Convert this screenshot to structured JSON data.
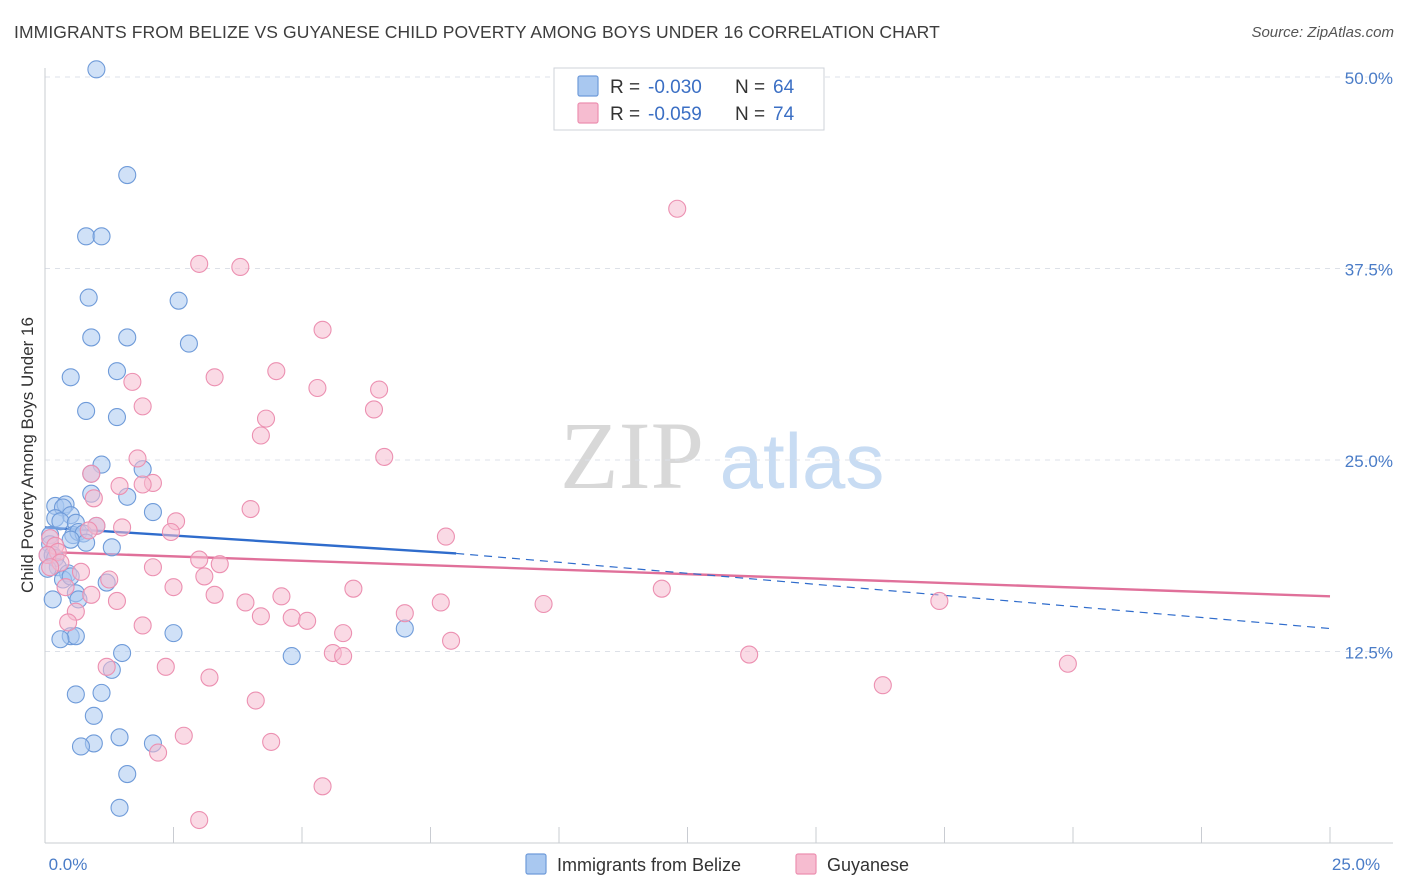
{
  "title": "IMMIGRANTS FROM BELIZE VS GUYANESE CHILD POVERTY AMONG BOYS UNDER 16 CORRELATION CHART",
  "source": "Source: ZipAtlas.com",
  "watermark": {
    "zip": "ZIP",
    "atlas": "atlas"
  },
  "colors": {
    "blue_fill": "#a9c8f0",
    "blue_stroke": "#6f9bd9",
    "blue_line": "#2f6ccc",
    "pink_fill": "#f6bcd0",
    "pink_stroke": "#ec90b1",
    "pink_line": "#e0709a",
    "grid": "#dde1e8",
    "axis_label": "#4a7cc7"
  },
  "legend": {
    "rows": [
      {
        "r_label": "R =",
        "r_value": "-0.030",
        "n_label": "N =",
        "n_value": "64"
      },
      {
        "r_label": "R =",
        "r_value": "-0.059",
        "n_label": "N =",
        "n_value": "74"
      }
    ]
  },
  "chart_data": {
    "type": "scatter",
    "title": "IMMIGRANTS FROM BELIZE VS GUYANESE CHILD POVERTY AMONG BOYS UNDER 16 CORRELATION CHART",
    "xlabel": "",
    "ylabel": "Child Poverty Among Boys Under 16",
    "xlim": [
      0,
      25
    ],
    "ylim": [
      0,
      50
    ],
    "x_tick_labels": [
      "0.0%",
      "25.0%"
    ],
    "y_ticks": [
      12.5,
      25.0,
      37.5,
      50.0
    ],
    "y_tick_labels": [
      "12.5%",
      "25.0%",
      "37.5%",
      "50.0%"
    ],
    "series": [
      {
        "name": "Immigrants from Belize",
        "color": "blue",
        "r": -0.03,
        "n": 64,
        "trend_solid": [
          [
            0.0,
            20.6
          ],
          [
            8.0,
            18.9
          ]
        ],
        "trend_dashed": [
          [
            8.0,
            18.9
          ],
          [
            25.0,
            14.0
          ]
        ],
        "points": [
          [
            1.0,
            50.5
          ],
          [
            1.6,
            43.6
          ],
          [
            0.8,
            39.6
          ],
          [
            1.1,
            39.6
          ],
          [
            0.85,
            35.6
          ],
          [
            2.6,
            35.4
          ],
          [
            0.9,
            33.0
          ],
          [
            1.6,
            33.0
          ],
          [
            2.8,
            32.6
          ],
          [
            0.5,
            30.4
          ],
          [
            1.4,
            30.8
          ],
          [
            0.8,
            28.2
          ],
          [
            1.4,
            27.8
          ],
          [
            1.1,
            24.7
          ],
          [
            1.9,
            24.4
          ],
          [
            0.9,
            24.1
          ],
          [
            0.9,
            22.8
          ],
          [
            1.6,
            22.6
          ],
          [
            0.2,
            22.0
          ],
          [
            0.4,
            22.1
          ],
          [
            0.35,
            21.9
          ],
          [
            0.5,
            21.4
          ],
          [
            2.1,
            21.6
          ],
          [
            0.2,
            21.2
          ],
          [
            0.3,
            21.0
          ],
          [
            0.6,
            20.9
          ],
          [
            1.0,
            20.7
          ],
          [
            0.1,
            20.1
          ],
          [
            0.55,
            20.1
          ],
          [
            0.65,
            20.3
          ],
          [
            0.75,
            20.2
          ],
          [
            0.8,
            19.6
          ],
          [
            0.1,
            19.5
          ],
          [
            0.5,
            19.8
          ],
          [
            1.3,
            19.3
          ],
          [
            0.05,
            18.8
          ],
          [
            0.15,
            18.8
          ],
          [
            0.2,
            18.6
          ],
          [
            0.25,
            18.0
          ],
          [
            0.05,
            17.9
          ],
          [
            0.45,
            17.6
          ],
          [
            0.35,
            17.2
          ],
          [
            0.5,
            17.4
          ],
          [
            1.2,
            17.0
          ],
          [
            0.6,
            16.3
          ],
          [
            0.65,
            15.9
          ],
          [
            0.15,
            15.9
          ],
          [
            7.0,
            14.0
          ],
          [
            0.5,
            13.5
          ],
          [
            0.6,
            13.5
          ],
          [
            0.3,
            13.3
          ],
          [
            2.5,
            13.7
          ],
          [
            1.5,
            12.4
          ],
          [
            4.8,
            12.2
          ],
          [
            1.3,
            11.3
          ],
          [
            0.6,
            9.7
          ],
          [
            1.1,
            9.8
          ],
          [
            0.95,
            8.3
          ],
          [
            1.45,
            6.9
          ],
          [
            0.95,
            6.5
          ],
          [
            0.7,
            6.3
          ],
          [
            2.1,
            6.5
          ],
          [
            1.6,
            4.5
          ],
          [
            1.45,
            2.3
          ]
        ]
      },
      {
        "name": "Guyanese",
        "color": "pink",
        "r": -0.059,
        "n": 74,
        "trend_solid": [
          [
            0.0,
            19.0
          ],
          [
            25.0,
            16.1
          ]
        ],
        "points": [
          [
            12.3,
            41.4
          ],
          [
            3.0,
            37.8
          ],
          [
            3.8,
            37.6
          ],
          [
            5.4,
            33.5
          ],
          [
            4.5,
            30.8
          ],
          [
            3.3,
            30.4
          ],
          [
            1.7,
            30.1
          ],
          [
            5.3,
            29.7
          ],
          [
            6.5,
            29.6
          ],
          [
            1.9,
            28.5
          ],
          [
            6.4,
            28.3
          ],
          [
            4.3,
            27.7
          ],
          [
            4.2,
            26.6
          ],
          [
            6.6,
            25.2
          ],
          [
            1.8,
            25.1
          ],
          [
            0.9,
            24.1
          ],
          [
            2.1,
            23.5
          ],
          [
            1.45,
            23.3
          ],
          [
            1.9,
            23.4
          ],
          [
            0.95,
            22.5
          ],
          [
            4.0,
            21.8
          ],
          [
            2.55,
            21.0
          ],
          [
            1.0,
            20.7
          ],
          [
            1.5,
            20.6
          ],
          [
            0.85,
            20.4
          ],
          [
            2.45,
            20.3
          ],
          [
            7.8,
            20.0
          ],
          [
            0.1,
            19.9
          ],
          [
            0.2,
            19.4
          ],
          [
            0.25,
            19.0
          ],
          [
            0.05,
            18.8
          ],
          [
            3.0,
            18.5
          ],
          [
            0.3,
            18.3
          ],
          [
            3.4,
            18.2
          ],
          [
            0.1,
            18.0
          ],
          [
            2.1,
            18.0
          ],
          [
            0.7,
            17.7
          ],
          [
            3.1,
            17.4
          ],
          [
            1.25,
            17.2
          ],
          [
            0.4,
            16.7
          ],
          [
            2.5,
            16.7
          ],
          [
            6.0,
            16.6
          ],
          [
            12.0,
            16.6
          ],
          [
            0.9,
            16.2
          ],
          [
            3.3,
            16.2
          ],
          [
            4.6,
            16.1
          ],
          [
            1.4,
            15.8
          ],
          [
            3.9,
            15.7
          ],
          [
            7.7,
            15.7
          ],
          [
            9.7,
            15.6
          ],
          [
            17.4,
            15.8
          ],
          [
            0.6,
            15.1
          ],
          [
            7.0,
            15.0
          ],
          [
            4.2,
            14.8
          ],
          [
            4.8,
            14.7
          ],
          [
            5.1,
            14.5
          ],
          [
            0.45,
            14.4
          ],
          [
            1.9,
            14.2
          ],
          [
            5.8,
            13.7
          ],
          [
            7.9,
            13.2
          ],
          [
            5.6,
            12.4
          ],
          [
            5.8,
            12.2
          ],
          [
            13.7,
            12.3
          ],
          [
            19.9,
            11.7
          ],
          [
            1.2,
            11.5
          ],
          [
            2.35,
            11.5
          ],
          [
            3.2,
            10.8
          ],
          [
            16.3,
            10.3
          ],
          [
            4.1,
            9.3
          ],
          [
            2.7,
            7.0
          ],
          [
            4.4,
            6.6
          ],
          [
            2.2,
            5.9
          ],
          [
            5.4,
            3.7
          ],
          [
            3.0,
            1.5
          ]
        ]
      }
    ]
  }
}
